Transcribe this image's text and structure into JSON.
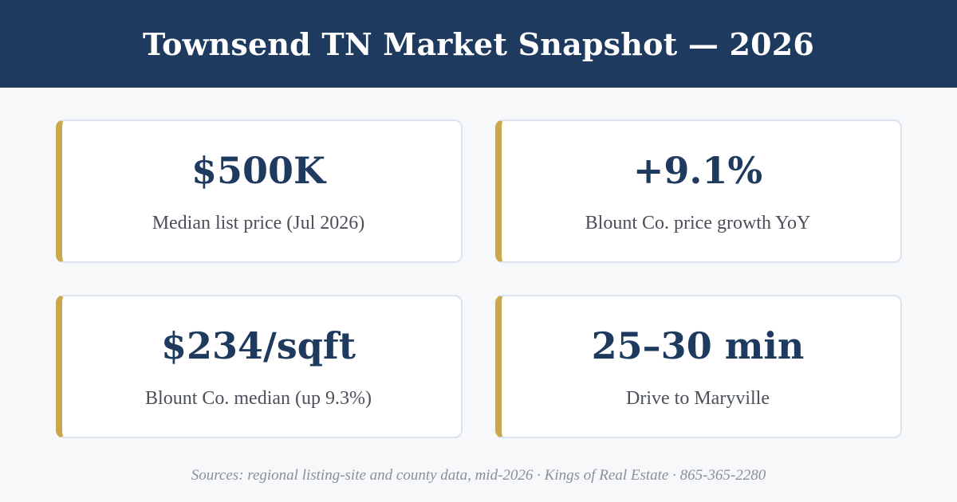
{
  "header": {
    "title": "Townsend TN Market Snapshot — 2026"
  },
  "stats": [
    {
      "value": "$500K",
      "label": "Median list price (Jul 2026)"
    },
    {
      "value": "+9.1%",
      "label": "Blount Co. price growth YoY"
    },
    {
      "value": "$234/sqft",
      "label": "Blount Co. median (up 9.3%)"
    },
    {
      "value": "25–30 min",
      "label": "Drive to Maryville"
    }
  ],
  "footer": {
    "text": "Sources: regional listing-site and county data, mid-2026 · Kings of Real Estate · 865-365-2280"
  },
  "colors": {
    "header_bg": "#1e3a5f",
    "accent": "#c9a84c",
    "stat_text": "#1e3a5f"
  }
}
